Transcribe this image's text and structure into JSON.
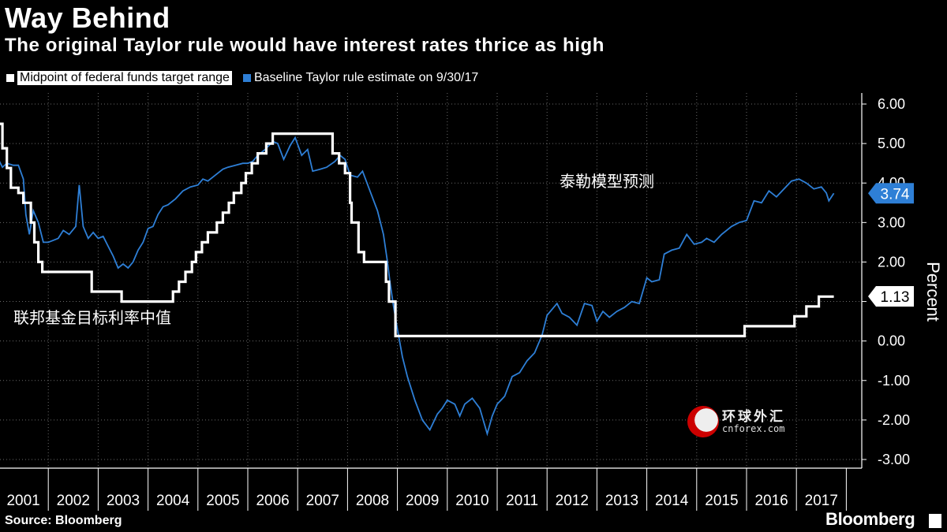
{
  "header": {
    "title": "Way Behind",
    "subtitle": "The original Taylor rule would have interest rates thrice as high"
  },
  "legend": {
    "series1": "Midpoint of federal funds target range",
    "series2": "Baseline Taylor rule estimate on 9/30/17"
  },
  "footer": {
    "source": "Source: Bloomberg",
    "brand": "Bloomberg"
  },
  "watermark": {
    "cn": "环球外汇",
    "en": "cnforex.com"
  },
  "colors": {
    "background": "#000000",
    "fed": "#ffffff",
    "taylor": "#2e7fd6",
    "grid": "#555555"
  },
  "chart_data": {
    "type": "line",
    "title": "Way Behind",
    "ylabel": "Percent",
    "ylim": [
      -3,
      6
    ],
    "yticks": [
      "6.00",
      "5.00",
      "4.00",
      "3.00",
      "2.00",
      "1.00",
      "0.00",
      "-1.00",
      "-2.00",
      "-3.00"
    ],
    "ytick_values": [
      6,
      5,
      4,
      3,
      2,
      1,
      0,
      -1,
      -2,
      -3
    ],
    "xlim": [
      2001,
      2018.0
    ],
    "years": [
      "2001",
      "2002",
      "2003",
      "2004",
      "2005",
      "2006",
      "2007",
      "2008",
      "2009",
      "2010",
      "2011",
      "2012",
      "2013",
      "2014",
      "2015",
      "2016",
      "2017"
    ],
    "annotations": [
      {
        "text": "泰勒模型预测",
        "x": 2012.25,
        "y": 3.9
      },
      {
        "text": "联邦基金目标利率中值",
        "x": 2001.3,
        "y": 0.45
      }
    ],
    "end_labels": [
      {
        "series": "Baseline Taylor rule estimate on 9/30/17",
        "text": "3.74",
        "value": 3.74
      },
      {
        "series": "Midpoint of federal funds target range",
        "text": "1.13",
        "value": 1.13
      }
    ],
    "series": [
      {
        "name": "Midpoint of federal funds target range",
        "color": "#ffffff",
        "points": [
          [
            2001.0,
            5.5
          ],
          [
            2001.08,
            5.5
          ],
          [
            2001.08,
            4.88
          ],
          [
            2001.17,
            4.88
          ],
          [
            2001.17,
            4.38
          ],
          [
            2001.25,
            4.38
          ],
          [
            2001.25,
            3.88
          ],
          [
            2001.4,
            3.88
          ],
          [
            2001.4,
            3.75
          ],
          [
            2001.5,
            3.75
          ],
          [
            2001.5,
            3.5
          ],
          [
            2001.65,
            3.5
          ],
          [
            2001.65,
            3.0
          ],
          [
            2001.72,
            3.0
          ],
          [
            2001.72,
            2.5
          ],
          [
            2001.8,
            2.5
          ],
          [
            2001.8,
            2.0
          ],
          [
            2001.88,
            2.0
          ],
          [
            2001.88,
            1.75
          ],
          [
            2002.87,
            1.75
          ],
          [
            2002.87,
            1.25
          ],
          [
            2003.47,
            1.25
          ],
          [
            2003.47,
            1.0
          ],
          [
            2004.5,
            1.0
          ],
          [
            2004.5,
            1.25
          ],
          [
            2004.62,
            1.25
          ],
          [
            2004.62,
            1.5
          ],
          [
            2004.75,
            1.5
          ],
          [
            2004.75,
            1.75
          ],
          [
            2004.88,
            1.75
          ],
          [
            2004.88,
            2.0
          ],
          [
            2004.96,
            2.0
          ],
          [
            2004.96,
            2.25
          ],
          [
            2005.08,
            2.25
          ],
          [
            2005.08,
            2.5
          ],
          [
            2005.2,
            2.5
          ],
          [
            2005.2,
            2.75
          ],
          [
            2005.38,
            2.75
          ],
          [
            2005.38,
            3.0
          ],
          [
            2005.5,
            3.0
          ],
          [
            2005.5,
            3.25
          ],
          [
            2005.62,
            3.25
          ],
          [
            2005.62,
            3.5
          ],
          [
            2005.72,
            3.5
          ],
          [
            2005.72,
            3.75
          ],
          [
            2005.87,
            3.75
          ],
          [
            2005.87,
            4.0
          ],
          [
            2005.96,
            4.0
          ],
          [
            2005.96,
            4.25
          ],
          [
            2006.08,
            4.25
          ],
          [
            2006.08,
            4.5
          ],
          [
            2006.2,
            4.5
          ],
          [
            2006.2,
            4.75
          ],
          [
            2006.37,
            4.75
          ],
          [
            2006.37,
            5.0
          ],
          [
            2006.5,
            5.0
          ],
          [
            2006.5,
            5.25
          ],
          [
            2007.7,
            5.25
          ],
          [
            2007.7,
            4.75
          ],
          [
            2007.83,
            4.75
          ],
          [
            2007.83,
            4.5
          ],
          [
            2007.95,
            4.5
          ],
          [
            2007.95,
            4.25
          ],
          [
            2008.05,
            4.25
          ],
          [
            2008.05,
            3.5
          ],
          [
            2008.08,
            3.5
          ],
          [
            2008.08,
            3.0
          ],
          [
            2008.22,
            3.0
          ],
          [
            2008.22,
            2.25
          ],
          [
            2008.33,
            2.25
          ],
          [
            2008.33,
            2.0
          ],
          [
            2008.77,
            2.0
          ],
          [
            2008.77,
            1.5
          ],
          [
            2008.83,
            1.5
          ],
          [
            2008.83,
            1.0
          ],
          [
            2008.96,
            1.0
          ],
          [
            2008.96,
            0.125
          ],
          [
            2015.96,
            0.125
          ],
          [
            2015.96,
            0.375
          ],
          [
            2016.96,
            0.375
          ],
          [
            2016.96,
            0.625
          ],
          [
            2017.2,
            0.625
          ],
          [
            2017.2,
            0.875
          ],
          [
            2017.45,
            0.875
          ],
          [
            2017.45,
            1.125
          ],
          [
            2017.75,
            1.125
          ]
        ]
      },
      {
        "name": "Baseline Taylor rule estimate on 9/30/17",
        "color": "#2e7fd6",
        "points": [
          [
            2001.0,
            4.6
          ],
          [
            2001.08,
            4.4
          ],
          [
            2001.17,
            4.5
          ],
          [
            2001.3,
            4.45
          ],
          [
            2001.4,
            4.45
          ],
          [
            2001.5,
            4.1
          ],
          [
            2001.55,
            3.2
          ],
          [
            2001.62,
            2.7
          ],
          [
            2001.7,
            3.3
          ],
          [
            2001.8,
            3.0
          ],
          [
            2001.9,
            2.5
          ],
          [
            2002.0,
            2.5
          ],
          [
            2002.1,
            2.55
          ],
          [
            2002.2,
            2.6
          ],
          [
            2002.3,
            2.8
          ],
          [
            2002.42,
            2.7
          ],
          [
            2002.55,
            2.9
          ],
          [
            2002.62,
            3.95
          ],
          [
            2002.7,
            2.9
          ],
          [
            2002.8,
            2.6
          ],
          [
            2002.9,
            2.75
          ],
          [
            2003.0,
            2.6
          ],
          [
            2003.1,
            2.65
          ],
          [
            2003.2,
            2.4
          ],
          [
            2003.3,
            2.15
          ],
          [
            2003.4,
            1.85
          ],
          [
            2003.5,
            1.95
          ],
          [
            2003.6,
            1.85
          ],
          [
            2003.7,
            2.0
          ],
          [
            2003.8,
            2.3
          ],
          [
            2003.9,
            2.5
          ],
          [
            2004.0,
            2.85
          ],
          [
            2004.1,
            2.9
          ],
          [
            2004.2,
            3.2
          ],
          [
            2004.3,
            3.4
          ],
          [
            2004.4,
            3.45
          ],
          [
            2004.55,
            3.6
          ],
          [
            2004.7,
            3.8
          ],
          [
            2004.85,
            3.9
          ],
          [
            2005.0,
            3.95
          ],
          [
            2005.1,
            4.1
          ],
          [
            2005.2,
            4.05
          ],
          [
            2005.35,
            4.2
          ],
          [
            2005.5,
            4.35
          ],
          [
            2005.6,
            4.4
          ],
          [
            2005.75,
            4.45
          ],
          [
            2005.9,
            4.5
          ],
          [
            2006.0,
            4.5
          ],
          [
            2006.1,
            4.55
          ],
          [
            2006.2,
            4.7
          ],
          [
            2006.35,
            4.85
          ],
          [
            2006.5,
            5.05
          ],
          [
            2006.6,
            5.0
          ],
          [
            2006.72,
            4.6
          ],
          [
            2006.85,
            4.95
          ],
          [
            2006.95,
            5.15
          ],
          [
            2007.08,
            4.7
          ],
          [
            2007.2,
            4.85
          ],
          [
            2007.3,
            4.3
          ],
          [
            2007.45,
            4.35
          ],
          [
            2007.58,
            4.4
          ],
          [
            2007.75,
            4.55
          ],
          [
            2007.85,
            4.7
          ],
          [
            2007.95,
            4.6
          ],
          [
            2008.05,
            4.2
          ],
          [
            2008.2,
            4.15
          ],
          [
            2008.3,
            4.3
          ],
          [
            2008.45,
            3.8
          ],
          [
            2008.6,
            3.3
          ],
          [
            2008.72,
            2.7
          ],
          [
            2008.8,
            2.0
          ],
          [
            2008.85,
            1.5
          ],
          [
            2008.92,
            0.9
          ],
          [
            2009.0,
            0.3
          ],
          [
            2009.1,
            -0.4
          ],
          [
            2009.2,
            -0.9
          ],
          [
            2009.35,
            -1.5
          ],
          [
            2009.5,
            -2.0
          ],
          [
            2009.65,
            -2.25
          ],
          [
            2009.8,
            -1.85
          ],
          [
            2009.9,
            -1.7
          ],
          [
            2010.0,
            -1.5
          ],
          [
            2010.15,
            -1.6
          ],
          [
            2010.25,
            -1.9
          ],
          [
            2010.35,
            -1.6
          ],
          [
            2010.5,
            -1.45
          ],
          [
            2010.65,
            -1.7
          ],
          [
            2010.8,
            -2.35
          ],
          [
            2010.9,
            -1.9
          ],
          [
            2011.0,
            -1.6
          ],
          [
            2011.15,
            -1.4
          ],
          [
            2011.3,
            -0.9
          ],
          [
            2011.45,
            -0.8
          ],
          [
            2011.6,
            -0.5
          ],
          [
            2011.75,
            -0.3
          ],
          [
            2011.9,
            0.15
          ],
          [
            2012.0,
            0.65
          ],
          [
            2012.1,
            0.8
          ],
          [
            2012.2,
            0.95
          ],
          [
            2012.3,
            0.7
          ],
          [
            2012.45,
            0.6
          ],
          [
            2012.6,
            0.4
          ],
          [
            2012.75,
            0.95
          ],
          [
            2012.9,
            0.9
          ],
          [
            2013.0,
            0.5
          ],
          [
            2013.12,
            0.75
          ],
          [
            2013.25,
            0.6
          ],
          [
            2013.4,
            0.75
          ],
          [
            2013.55,
            0.85
          ],
          [
            2013.7,
            1.0
          ],
          [
            2013.85,
            0.95
          ],
          [
            2014.0,
            1.6
          ],
          [
            2014.1,
            1.5
          ],
          [
            2014.25,
            1.55
          ],
          [
            2014.35,
            2.2
          ],
          [
            2014.5,
            2.3
          ],
          [
            2014.65,
            2.35
          ],
          [
            2014.8,
            2.7
          ],
          [
            2014.95,
            2.45
          ],
          [
            2015.1,
            2.5
          ],
          [
            2015.2,
            2.6
          ],
          [
            2015.35,
            2.5
          ],
          [
            2015.5,
            2.7
          ],
          [
            2015.7,
            2.9
          ],
          [
            2015.85,
            3.0
          ],
          [
            2016.0,
            3.05
          ],
          [
            2016.15,
            3.55
          ],
          [
            2016.3,
            3.5
          ],
          [
            2016.45,
            3.8
          ],
          [
            2016.6,
            3.65
          ],
          [
            2016.75,
            3.85
          ],
          [
            2016.9,
            4.05
          ],
          [
            2017.05,
            4.1
          ],
          [
            2017.2,
            4.0
          ],
          [
            2017.35,
            3.85
          ],
          [
            2017.5,
            3.9
          ],
          [
            2017.6,
            3.75
          ],
          [
            2017.65,
            3.55
          ],
          [
            2017.75,
            3.74
          ]
        ]
      }
    ]
  }
}
